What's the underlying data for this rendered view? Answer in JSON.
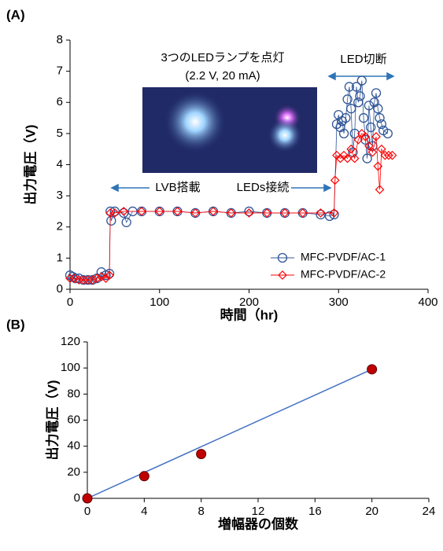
{
  "chart_data": [
    {
      "type": "line",
      "panel_label": "(A)",
      "ylabel": "出力電圧（V)",
      "xlabel": "時間（hr)",
      "annotations": [
        "3つのLEDランプを点灯",
        "(2.2 V, 20 mA)",
        "LED切断",
        "LVB搭載",
        "LEDs接続"
      ],
      "xlim": [
        0,
        400
      ],
      "xticks": [
        0,
        100,
        200,
        300,
        400
      ],
      "ylim": [
        0,
        8
      ],
      "yticks": [
        0,
        1,
        2,
        3,
        4,
        5,
        6,
        7,
        8
      ],
      "legend": "lower right",
      "series": [
        {
          "name": "MFC-PVDF/AC-1",
          "color": "#2f5597",
          "marker": "circle",
          "x": [
            0,
            3,
            6,
            10,
            15,
            20,
            25,
            30,
            35,
            40,
            44,
            45,
            46,
            50,
            60,
            63,
            70,
            80,
            100,
            120,
            140,
            160,
            180,
            200,
            220,
            240,
            260,
            280,
            290,
            295,
            298,
            300,
            302,
            304,
            306,
            308,
            310,
            312,
            314,
            316,
            318,
            320,
            322,
            324,
            326,
            328,
            330,
            332,
            334,
            336,
            338,
            340,
            342,
            344,
            346,
            348,
            350,
            355
          ],
          "values": [
            0.45,
            0.4,
            0.35,
            0.35,
            0.3,
            0.3,
            0.3,
            0.35,
            0.55,
            0.45,
            0.5,
            2.5,
            2.2,
            2.5,
            2.45,
            2.15,
            2.5,
            2.5,
            2.5,
            2.5,
            2.45,
            2.5,
            2.45,
            2.5,
            2.45,
            2.45,
            2.45,
            2.4,
            2.35,
            2.4,
            5.3,
            5.6,
            5.2,
            5.4,
            5.0,
            5.5,
            6.1,
            6.5,
            5.8,
            4.4,
            5.0,
            6.5,
            6.0,
            6.2,
            6.7,
            5.5,
            4.8,
            4.2,
            5.9,
            5.2,
            4.6,
            6.0,
            6.3,
            5.8,
            5.5,
            5.3,
            5.1,
            5.0
          ]
        },
        {
          "name": "MFC-PVDF/AC-2",
          "color": "#ff0000",
          "marker": "diamond",
          "x": [
            0,
            5,
            10,
            15,
            20,
            25,
            30,
            35,
            40,
            44,
            45,
            50,
            60,
            80,
            100,
            120,
            140,
            160,
            180,
            200,
            220,
            240,
            260,
            280,
            295,
            296,
            298,
            302,
            306,
            310,
            314,
            318,
            322,
            326,
            330,
            334,
            338,
            342,
            344,
            346,
            348,
            352,
            356,
            360
          ],
          "values": [
            0.35,
            0.35,
            0.3,
            0.3,
            0.3,
            0.3,
            0.35,
            0.4,
            0.35,
            0.45,
            2.45,
            2.45,
            2.5,
            2.5,
            2.5,
            2.5,
            2.45,
            2.5,
            2.45,
            2.45,
            2.45,
            2.45,
            2.45,
            2.45,
            2.45,
            3.5,
            4.3,
            4.2,
            4.3,
            4.2,
            4.5,
            4.2,
            4.8,
            5.0,
            4.9,
            4.6,
            4.4,
            4.9,
            3.95,
            3.2,
            4.5,
            4.3,
            4.3,
            4.3
          ]
        }
      ]
    },
    {
      "type": "scatter",
      "panel_label": "(B)",
      "ylabel": "出力電圧（V)",
      "xlabel": "増幅器の個数",
      "xlim": [
        0,
        24
      ],
      "xticks": [
        0,
        4,
        8,
        12,
        16,
        20,
        24
      ],
      "ylim": [
        0,
        120
      ],
      "yticks": [
        0,
        20,
        40,
        60,
        80,
        100,
        120
      ],
      "x": [
        0,
        4,
        8,
        20
      ],
      "values": [
        0,
        17,
        34,
        99
      ],
      "color": "#c00000",
      "trendline": {
        "x": [
          0,
          20
        ],
        "y": [
          0,
          99
        ],
        "color": "#4472c4"
      }
    }
  ]
}
